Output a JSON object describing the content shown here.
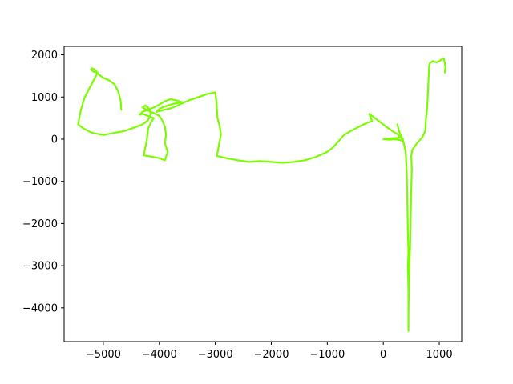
{
  "chart_data": {
    "type": "line",
    "title": "",
    "xlabel": "",
    "ylabel": "",
    "xlim": [
      -5700,
      1400
    ],
    "ylim": [
      -4800,
      2200
    ],
    "grid": false,
    "x_ticks": [
      -5000,
      -4000,
      -3000,
      -2000,
      -1000,
      0,
      1000
    ],
    "y_ticks": [
      -4000,
      -3000,
      -2000,
      -1000,
      0,
      1000,
      2000
    ],
    "x_tick_labels": [
      "−5000",
      "−4000",
      "−3000",
      "−2000",
      "−1000",
      "0",
      "1000"
    ],
    "y_tick_labels": [
      "−4000",
      "−3000",
      "−2000",
      "−1000",
      "0",
      "1000",
      "2000"
    ],
    "series": [
      {
        "color": "#7cfc00",
        "points": [
          [
            -4680,
            700
          ],
          [
            -4690,
            900
          ],
          [
            -4730,
            1120
          ],
          [
            -4800,
            1300
          ],
          [
            -4900,
            1400
          ],
          [
            -5000,
            1450
          ],
          [
            -5080,
            1530
          ],
          [
            -5150,
            1650
          ],
          [
            -5200,
            1680
          ],
          [
            -5220,
            1650
          ],
          [
            -5180,
            1600
          ],
          [
            -5100,
            1580
          ],
          [
            -5150,
            1450
          ],
          [
            -5250,
            1200
          ],
          [
            -5330,
            1000
          ],
          [
            -5400,
            700
          ],
          [
            -5430,
            500
          ],
          [
            -5450,
            350
          ],
          [
            -5350,
            250
          ],
          [
            -5200,
            150
          ],
          [
            -5000,
            100
          ],
          [
            -4800,
            150
          ],
          [
            -4600,
            200
          ],
          [
            -4400,
            300
          ],
          [
            -4300,
            350
          ],
          [
            -4200,
            450
          ],
          [
            -4150,
            600
          ],
          [
            -4200,
            750
          ],
          [
            -4250,
            800
          ],
          [
            -4300,
            750
          ],
          [
            -4200,
            680
          ],
          [
            -4100,
            620
          ],
          [
            -4000,
            550
          ],
          [
            -3950,
            450
          ],
          [
            -3900,
            300
          ],
          [
            -3880,
            100
          ],
          [
            -3900,
            -100
          ],
          [
            -3850,
            -300
          ],
          [
            -3900,
            -500
          ],
          [
            -4000,
            -450
          ],
          [
            -4200,
            -400
          ],
          [
            -4280,
            -380
          ],
          [
            -4250,
            -200
          ],
          [
            -4220,
            0
          ],
          [
            -4200,
            250
          ],
          [
            -4150,
            400
          ],
          [
            -4100,
            500
          ],
          [
            -4200,
            550
          ],
          [
            -4300,
            600
          ],
          [
            -4350,
            580
          ],
          [
            -4300,
            650
          ],
          [
            -4200,
            700
          ],
          [
            -4100,
            750
          ],
          [
            -4000,
            820
          ],
          [
            -3900,
            900
          ],
          [
            -3800,
            950
          ],
          [
            -3700,
            920
          ],
          [
            -3600,
            880
          ],
          [
            -3700,
            850
          ],
          [
            -3800,
            820
          ],
          [
            -3900,
            780
          ],
          [
            -4000,
            720
          ],
          [
            -4050,
            650
          ],
          [
            -3900,
            700
          ],
          [
            -3800,
            730
          ],
          [
            -3700,
            780
          ],
          [
            -3600,
            850
          ],
          [
            -3450,
            930
          ],
          [
            -3300,
            1000
          ],
          [
            -3150,
            1070
          ],
          [
            -3000,
            1110
          ],
          [
            -2980,
            900
          ],
          [
            -2970,
            700
          ],
          [
            -2960,
            500
          ],
          [
            -2920,
            300
          ],
          [
            -2900,
            100
          ],
          [
            -2930,
            -100
          ],
          [
            -2950,
            -250
          ],
          [
            -2970,
            -400
          ],
          [
            -2800,
            -450
          ],
          [
            -2600,
            -500
          ],
          [
            -2400,
            -540
          ],
          [
            -2200,
            -520
          ],
          [
            -2000,
            -540
          ],
          [
            -1800,
            -560
          ],
          [
            -1600,
            -540
          ],
          [
            -1400,
            -500
          ],
          [
            -1200,
            -420
          ],
          [
            -1000,
            -300
          ],
          [
            -900,
            -200
          ],
          [
            -800,
            -50
          ],
          [
            -700,
            100
          ],
          [
            -600,
            180
          ],
          [
            -500,
            250
          ],
          [
            -400,
            320
          ],
          [
            -300,
            380
          ],
          [
            -200,
            430
          ],
          [
            -250,
            600
          ],
          [
            -150,
            500
          ],
          [
            -50,
            400
          ],
          [
            50,
            300
          ],
          [
            150,
            200
          ],
          [
            250,
            120
          ],
          [
            300,
            50
          ],
          [
            250,
            30
          ],
          [
            150,
            20
          ],
          [
            50,
            10
          ],
          [
            0,
            0
          ],
          [
            100,
            -10
          ],
          [
            200,
            0
          ],
          [
            300,
            -20
          ],
          [
            350,
            -50
          ],
          [
            280,
            200
          ],
          [
            250,
            350
          ],
          [
            290,
            150
          ],
          [
            350,
            0
          ],
          [
            400,
            -300
          ],
          [
            420,
            -800
          ],
          [
            430,
            -1500
          ],
          [
            440,
            -2200
          ],
          [
            450,
            -2700
          ],
          [
            440,
            -3000
          ],
          [
            450,
            -3600
          ],
          [
            450,
            -4200
          ],
          [
            450,
            -4550
          ],
          [
            450,
            -4100
          ],
          [
            460,
            -3400
          ],
          [
            470,
            -2900
          ],
          [
            480,
            -2500
          ],
          [
            490,
            -1800
          ],
          [
            500,
            -1200
          ],
          [
            510,
            -700
          ],
          [
            500,
            -400
          ],
          [
            520,
            -250
          ],
          [
            600,
            -100
          ],
          [
            700,
            50
          ],
          [
            750,
            200
          ],
          [
            760,
            450
          ],
          [
            780,
            700
          ],
          [
            790,
            900
          ],
          [
            800,
            1200
          ],
          [
            810,
            1500
          ],
          [
            820,
            1750
          ],
          [
            830,
            1800
          ],
          [
            880,
            1850
          ],
          [
            950,
            1820
          ],
          [
            1000,
            1850
          ],
          [
            1050,
            1900
          ],
          [
            1080,
            1920
          ],
          [
            1100,
            1800
          ],
          [
            1110,
            1700
          ],
          [
            1100,
            1580
          ]
        ]
      }
    ]
  }
}
